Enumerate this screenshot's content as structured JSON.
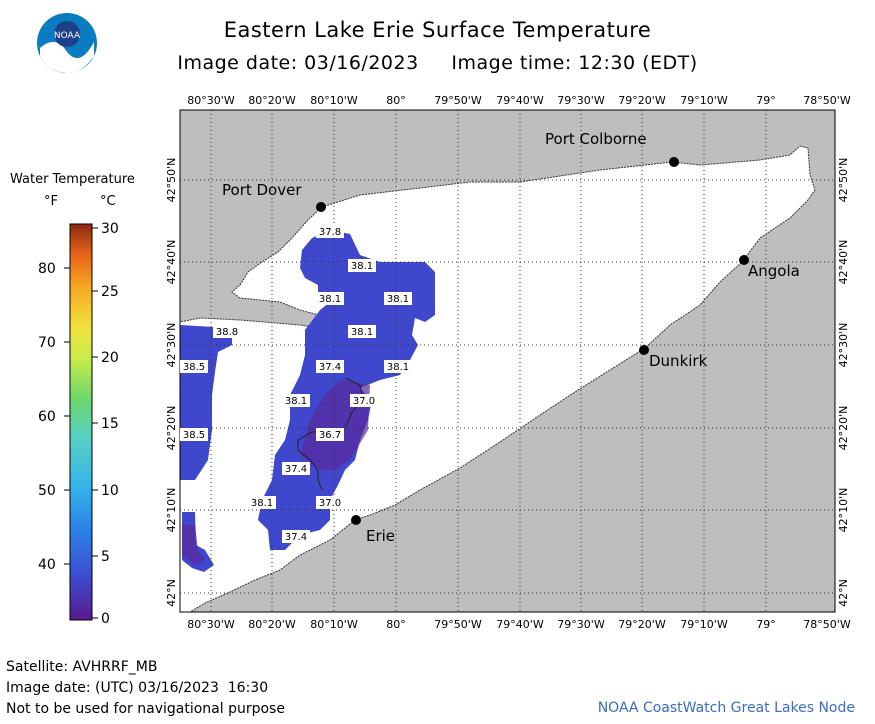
{
  "header": {
    "title": "Eastern Lake Erie Surface Temperature",
    "subtitle": "Image date: 03/16/2023     Image time: 12:30 (EDT)",
    "logo_text": "NOAA"
  },
  "map": {
    "lon_ticks": [
      "80°30'W",
      "80°20'W",
      "80°10'W",
      "80°",
      "79°50'W",
      "79°40'W",
      "79°30'W",
      "79°20'W",
      "79°10'W",
      "79°",
      "78°50'W"
    ],
    "lat_ticks": [
      "42°50'N",
      "42°40'N",
      "42°30'N",
      "42°20'N",
      "42°10'N",
      "42°N"
    ],
    "places": {
      "port_dover": "Port Dover",
      "port_colborne": "Port Colborne",
      "angola": "Angola",
      "dunkirk": "Dunkirk",
      "erie": "Erie"
    },
    "temperature_labels": [
      "37.8",
      "38.1",
      "38.1",
      "38.1",
      "38.8",
      "38.1",
      "38.5",
      "37.4",
      "38.1",
      "38.1",
      "37.0",
      "38.5",
      "36.7",
      "37.4",
      "38.1",
      "37.0",
      "37.4"
    ],
    "colors": {
      "land": "#bebebe",
      "water": "#ffffff",
      "cold_water": "#3f48cc"
    }
  },
  "legend": {
    "title": "Water Temperature",
    "unit_f": "°F",
    "unit_c": "°C",
    "f_ticks": [
      "80",
      "70",
      "60",
      "50",
      "40"
    ],
    "c_ticks": [
      "30",
      "25",
      "20",
      "15",
      "10",
      "5",
      "0"
    ]
  },
  "footer": {
    "satellite": "Satellite: AVHRRF_MB",
    "utc_date": "Image date: (UTC) 03/16/2023  16:30",
    "disclaimer": "Not to be used for navigational purpose",
    "credit": "NOAA CoastWatch Great Lakes Node"
  }
}
